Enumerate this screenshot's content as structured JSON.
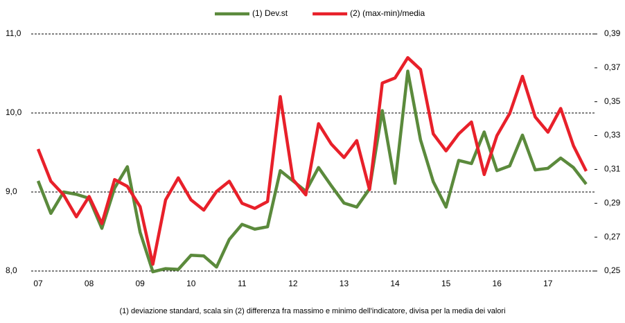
{
  "chart_data": {
    "type": "line",
    "categories": [
      "07",
      null,
      null,
      null,
      "08",
      null,
      null,
      null,
      "09",
      null,
      null,
      null,
      "10",
      null,
      null,
      null,
      "11",
      null,
      null,
      null,
      "12",
      null,
      null,
      null,
      "13",
      null,
      null,
      null,
      "14",
      null,
      null,
      null,
      "15",
      null,
      null,
      null,
      "16",
      null,
      null,
      null,
      "17",
      null,
      null,
      null
    ],
    "series": [
      {
        "name": "(1) Dev.st",
        "color": "#5b8a3c",
        "values": [
          9.14,
          8.73,
          9.0,
          8.97,
          8.92,
          8.54,
          9.05,
          9.32,
          8.49,
          7.99,
          8.03,
          8.02,
          8.2,
          8.19,
          8.05,
          8.4,
          8.59,
          8.53,
          8.56,
          9.27,
          9.14,
          9.01,
          9.31,
          9.08,
          8.86,
          8.81,
          9.04,
          10.03,
          9.11,
          10.53,
          9.66,
          9.13,
          8.81,
          9.4,
          9.36,
          9.76,
          9.27,
          9.33,
          9.72,
          9.28,
          9.3,
          9.43,
          9.31,
          9.1
        ]
      },
      {
        "name": "(2) (max-min)/media",
        "color": "#e8202a",
        "axis": "y2",
        "values": [
          0.322,
          0.303,
          0.295,
          0.282,
          0.294,
          0.278,
          0.304,
          0.3,
          0.288,
          0.254,
          0.292,
          0.305,
          0.292,
          0.286,
          0.297,
          0.303,
          0.29,
          0.287,
          0.291,
          0.353,
          0.304,
          0.295,
          0.337,
          0.325,
          0.317,
          0.327,
          0.298,
          0.361,
          0.364,
          0.376,
          0.369,
          0.331,
          0.321,
          0.331,
          0.338,
          0.307,
          0.33,
          0.343,
          0.365,
          0.341,
          0.332,
          0.346,
          0.324,
          0.309
        ]
      }
    ],
    "ylim": [
      8,
      11
    ],
    "yticks": [
      {
        "value": 8,
        "label": "8,0"
      },
      {
        "value": 9,
        "label": "9,0"
      },
      {
        "value": 10,
        "label": "10,0"
      },
      {
        "value": 11,
        "label": "11,0"
      }
    ],
    "y2lim": [
      0.25,
      0.39
    ],
    "y2ticks": [
      {
        "value": 0.25,
        "label": "0,25"
      },
      {
        "value": 0.27,
        "label": "0,27"
      },
      {
        "value": 0.29,
        "label": "0,29"
      },
      {
        "value": 0.31,
        "label": "0,31"
      },
      {
        "value": 0.33,
        "label": "0,33"
      },
      {
        "value": 0.35,
        "label": "0,35"
      },
      {
        "value": 0.37,
        "label": "0,37"
      },
      {
        "value": 0.39,
        "label": "0,39"
      }
    ],
    "grid": true,
    "legend": "top",
    "note": "(1) deviazione standard, scala sin (2) differenza fra massimo e minimo dell'indicatore, divisa per la media dei valori"
  }
}
